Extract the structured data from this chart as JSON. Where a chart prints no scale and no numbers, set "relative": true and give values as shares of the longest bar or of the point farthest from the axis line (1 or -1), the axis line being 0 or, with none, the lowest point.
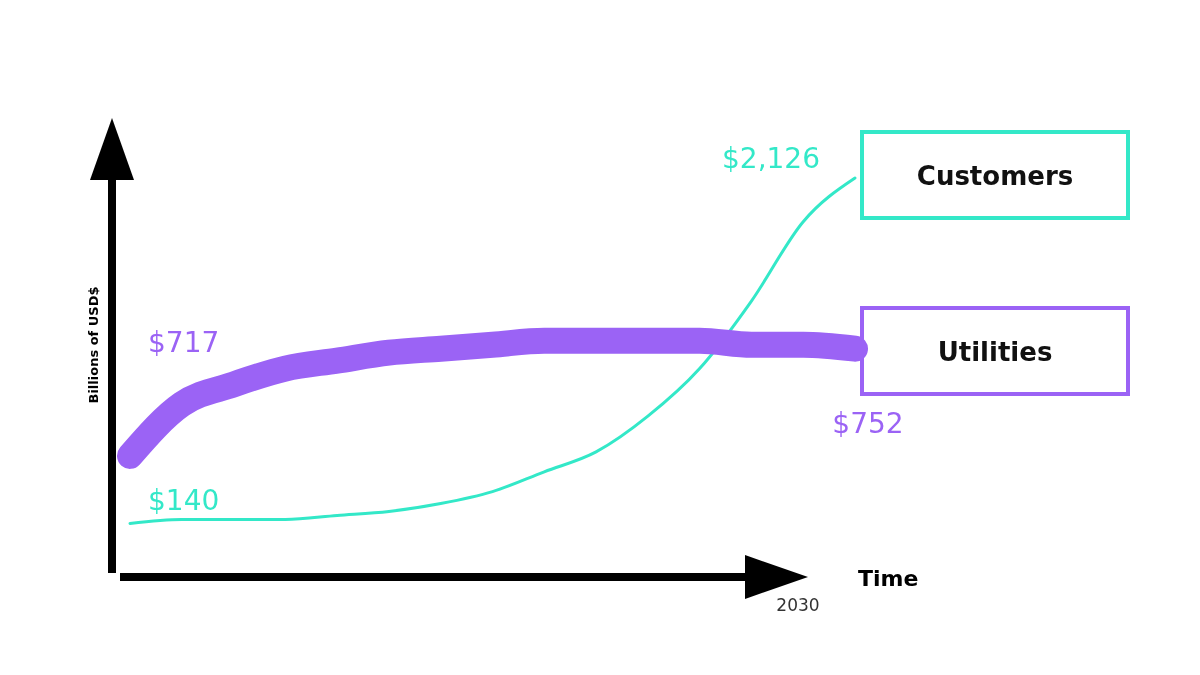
{
  "chart_data": {
    "type": "line",
    "relative": true,
    "xlabel": "Time",
    "ylabel": "Billions of USD$",
    "annotations": [
      "$2,126",
      "$717",
      "$752",
      "$140",
      "2030"
    ],
    "legend": "right",
    "marker": "none",
    "line_style": "solid",
    "categories": [
      null,
      null,
      null,
      null,
      null,
      null,
      null,
      null,
      null,
      null,
      null,
      null,
      null,
      null,
      null
    ],
    "series": [
      {
        "name": "Customers",
        "color": "#33e8c8",
        "values": [
          0.13,
          0.14,
          0.14,
          0.14,
          0.15,
          0.16,
          0.18,
          0.21,
          0.26,
          0.31,
          0.4,
          0.52,
          0.69,
          0.89,
          1
        ]
      },
      {
        "name": "Utilities",
        "color": "#9b63f5",
        "values": [
          0.3,
          0.43,
          0.48,
          0.52,
          0.54,
          0.56,
          0.57,
          0.58,
          0.59,
          0.59,
          0.59,
          0.59,
          0.58,
          0.58,
          0.57
        ]
      }
    ]
  }
}
